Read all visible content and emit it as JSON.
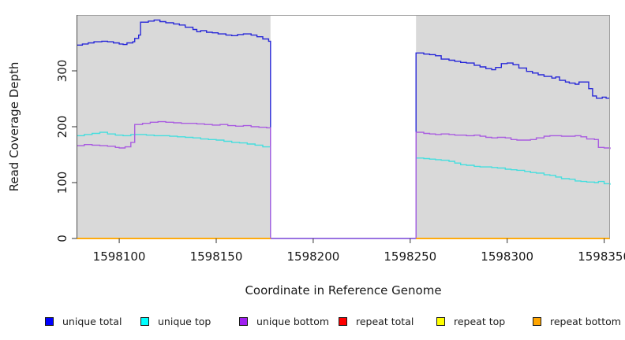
{
  "figure": {
    "ylab": "Read Coverage Depth",
    "xlab": "Coordinate in Reference Genome"
  },
  "chart_data": {
    "type": "line",
    "title": "",
    "xlabel": "Coordinate in Reference Genome",
    "ylabel": "Read Coverage Depth",
    "xlim": [
      1598078,
      1598353
    ],
    "ylim": [
      0,
      400
    ],
    "grid": false,
    "legend_position": "bottom",
    "x_ticks": [
      1598100,
      1598150,
      1598200,
      1598250,
      1598300,
      1598350
    ],
    "x_tick_labels": [
      "1598100",
      "1598150",
      "1598200",
      "1598250",
      "1598300",
      "1598350"
    ],
    "y_ticks": [
      0,
      100,
      200,
      300
    ],
    "colors": {
      "panel_bg": "#d9d9d9",
      "box": "#9e9e9e",
      "axis": "#333333",
      "background": "#ffffff"
    },
    "covered_regions": [
      [
        1598078,
        1598178
      ],
      [
        1598253,
        1598353
      ]
    ],
    "gap_region": [
      1598178,
      1598253
    ],
    "series": [
      {
        "name": "unique total",
        "color": "#2828d8",
        "segments": [
          {
            "x": [
              1598078,
              1598081,
              1598084,
              1598087,
              1598091,
              1598094,
              1598097,
              1598100,
              1598102,
              1598104,
              1598107,
              1598108,
              1598110,
              1598111,
              1598115,
              1598118,
              1598121,
              1598124,
              1598128,
              1598131,
              1598134,
              1598138,
              1598140,
              1598142,
              1598145,
              1598148,
              1598151,
              1598155,
              1598158,
              1598161,
              1598164,
              1598168,
              1598171,
              1598174,
              1598177,
              1598178,
              1598253,
              1598257,
              1598260,
              1598263,
              1598266,
              1598270,
              1598273,
              1598276,
              1598279,
              1598283,
              1598286,
              1598289,
              1598292,
              1598294,
              1598297,
              1598300,
              1598303,
              1598306,
              1598310,
              1598313,
              1598316,
              1598319,
              1598323,
              1598325,
              1598327,
              1598330,
              1598332,
              1598335,
              1598337,
              1598340,
              1598342,
              1598344,
              1598346,
              1598349,
              1598351,
              1598353
            ],
            "y": [
              346,
              348,
              350,
              352,
              353,
              352,
              350,
              348,
              347,
              350,
              352,
              358,
              364,
              387,
              389,
              391,
              388,
              386,
              384,
              382,
              378,
              374,
              370,
              372,
              369,
              368,
              366,
              364,
              363,
              365,
              366,
              364,
              361,
              357,
              353,
              0,
              332,
              330,
              329,
              327,
              321,
              319,
              317,
              315,
              314,
              310,
              307,
              304,
              302,
              306,
              313,
              314,
              311,
              305,
              299,
              296,
              293,
              290,
              287,
              289,
              283,
              280,
              278,
              276,
              280,
              280,
              268,
              255,
              251,
              253,
              251,
              251
            ]
          }
        ]
      },
      {
        "name": "unique top",
        "color": "#45dede",
        "segments": [
          {
            "x": [
              1598078,
              1598082,
              1598086,
              1598090,
              1598094,
              1598098,
              1598102,
              1598106,
              1598110,
              1598114,
              1598118,
              1598122,
              1598126,
              1598130,
              1598134,
              1598138,
              1598142,
              1598146,
              1598150,
              1598154,
              1598158,
              1598162,
              1598166,
              1598170,
              1598174,
              1598178,
              1598253,
              1598257,
              1598260,
              1598263,
              1598266,
              1598270,
              1598273,
              1598276,
              1598279,
              1598283,
              1598286,
              1598289,
              1598292,
              1598295,
              1598299,
              1598302,
              1598305,
              1598309,
              1598312,
              1598315,
              1598319,
              1598322,
              1598325,
              1598328,
              1598332,
              1598335,
              1598338,
              1598341,
              1598345,
              1598347,
              1598350,
              1598353
            ],
            "y": [
              184,
              186,
              188,
              190,
              187,
              185,
              184,
              186,
              186,
              185,
              184,
              184,
              183,
              182,
              181,
              180,
              178,
              177,
              176,
              174,
              172,
              171,
              169,
              167,
              164,
              0,
              144,
              143,
              142,
              141,
              140,
              138,
              135,
              132,
              131,
              129,
              128,
              128,
              127,
              126,
              124,
              123,
              122,
              120,
              118,
              117,
              114,
              113,
              110,
              107,
              106,
              103,
              102,
              101,
              100,
              102,
              98,
              96
            ]
          }
        ]
      },
      {
        "name": "unique bottom",
        "color": "#a95ce0",
        "segments": [
          {
            "x": [
              1598078,
              1598082,
              1598086,
              1598090,
              1598094,
              1598098,
              1598100,
              1598103,
              1598106,
              1598108,
              1598112,
              1598116,
              1598120,
              1598124,
              1598128,
              1598132,
              1598136,
              1598140,
              1598144,
              1598148,
              1598152,
              1598156,
              1598160,
              1598164,
              1598168,
              1598172,
              1598176,
              1598178,
              1598253,
              1598257,
              1598260,
              1598263,
              1598266,
              1598270,
              1598273,
              1598276,
              1598279,
              1598283,
              1598286,
              1598289,
              1598292,
              1598295,
              1598299,
              1598302,
              1598305,
              1598309,
              1598312,
              1598315,
              1598319,
              1598322,
              1598325,
              1598328,
              1598332,
              1598335,
              1598338,
              1598341,
              1598345,
              1598347,
              1598350,
              1598353
            ],
            "y": [
              166,
              168,
              167,
              166,
              165,
              163,
              162,
              164,
              172,
              204,
              206,
              208,
              209,
              208,
              207,
              206,
              206,
              205,
              204,
              203,
              204,
              202,
              201,
              202,
              200,
              199,
              198,
              0,
              190,
              188,
              187,
              186,
              187,
              186,
              185,
              185,
              184,
              185,
              183,
              181,
              180,
              181,
              180,
              177,
              176,
              176,
              177,
              180,
              183,
              184,
              184,
              183,
              183,
              184,
              182,
              178,
              177,
              163,
              162,
              160
            ]
          }
        ]
      },
      {
        "name": "repeat total",
        "color": "#ff0000",
        "segments": [
          {
            "x": [
              1598078,
              1598178
            ],
            "y": [
              0,
              0
            ]
          },
          {
            "x": [
              1598253,
              1598353
            ],
            "y": [
              0,
              0
            ]
          }
        ]
      },
      {
        "name": "repeat top",
        "color": "#ffff00",
        "segments": [
          {
            "x": [
              1598078,
              1598178
            ],
            "y": [
              0,
              0
            ]
          },
          {
            "x": [
              1598253,
              1598353
            ],
            "y": [
              0,
              0
            ]
          }
        ]
      },
      {
        "name": "repeat bottom",
        "color": "#ffa500",
        "segments": [
          {
            "x": [
              1598078,
              1598178
            ],
            "y": [
              0,
              0
            ]
          },
          {
            "x": [
              1598253,
              1598353
            ],
            "y": [
              0,
              0
            ]
          }
        ]
      }
    ],
    "legend": [
      {
        "label": "unique total",
        "color": "#0000ff"
      },
      {
        "label": "unique top",
        "color": "#00ffff"
      },
      {
        "label": "unique bottom",
        "color": "#a020f0"
      },
      {
        "label": "repeat total",
        "color": "#ff0000"
      },
      {
        "label": "repeat top",
        "color": "#ffff00"
      },
      {
        "label": "repeat bottom",
        "color": "#ffa500"
      }
    ]
  }
}
